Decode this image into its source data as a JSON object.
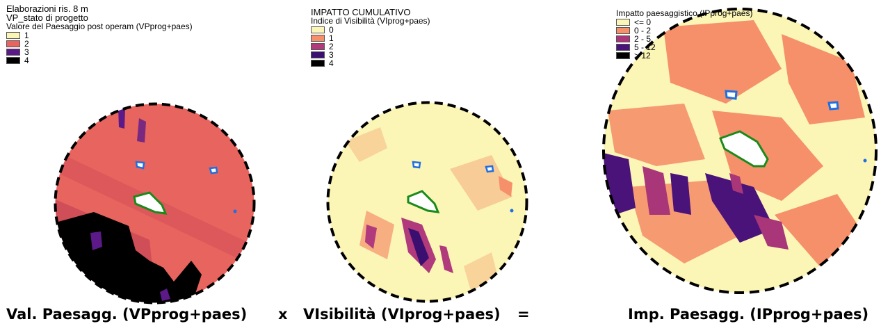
{
  "panel1": {
    "title1": "Elaborazioni ris. 8 m",
    "title2": "VP_stato di progetto",
    "title3": "Valore del Paesaggio post operam (VPprog+paes)",
    "legend": [
      {
        "label": "1",
        "color": "#fbf5b6"
      },
      {
        "label": "2",
        "color": "#e8645e"
      },
      {
        "label": "3",
        "color": "#5c1a88"
      },
      {
        "label": "4",
        "color": "#000000"
      }
    ]
  },
  "panel2": {
    "title1": "IMPATTO CUMULATIVO",
    "title2": "Indice di Visibilità (VIprog+paes)",
    "legend": [
      {
        "label": "0",
        "color": "#fbf5b6"
      },
      {
        "label": "1",
        "color": "#f5906a"
      },
      {
        "label": "2",
        "color": "#b03a7c"
      },
      {
        "label": "3",
        "color": "#3b0f70"
      },
      {
        "label": "4",
        "color": "#000000"
      }
    ]
  },
  "panel3": {
    "title1": "Impatto paesaggistico (IPprog+paes)",
    "legend": [
      {
        "label": "<= 0",
        "color": "#fbf5b6"
      },
      {
        "label": "0 - 2",
        "color": "#f5906a"
      },
      {
        "label": "2 - 5",
        "color": "#a93678"
      },
      {
        "label": "5 - 12",
        "color": "#4a137a"
      },
      {
        "label": "> 12",
        "color": "#000000"
      }
    ]
  },
  "captions": {
    "left": "Val. Paesagg. (VPprog+paes)",
    "op1": "x",
    "mid": "VIsibilità (VIprog+paes)",
    "op2": "=",
    "right": "Imp. Paesagg. (IPprog+paes)"
  }
}
